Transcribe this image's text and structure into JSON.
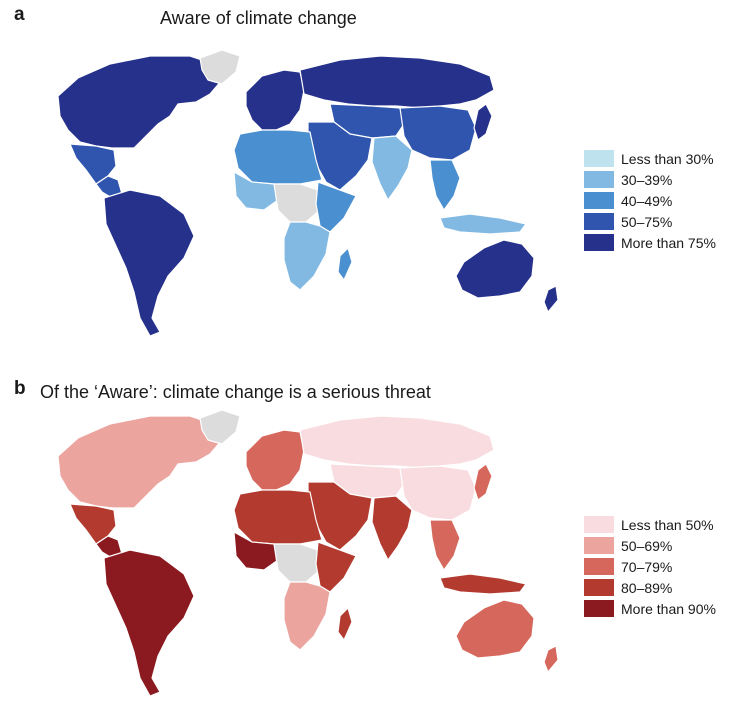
{
  "panels": [
    {
      "letter": "a",
      "title": "Aware of climate change",
      "legend": [
        {
          "label": "Less than 30%",
          "color": "#bfe3ee"
        },
        {
          "label": "30–39%",
          "color": "#82b9e3"
        },
        {
          "label": "40–49%",
          "color": "#4a8fd0"
        },
        {
          "label": "50–75%",
          "color": "#2f55ae"
        },
        {
          "label": "More than 75%",
          "color": "#25318b"
        }
      ],
      "no_data_color": "#dcdcdc",
      "regions": {
        "north-america": "#25318b",
        "greenland": "#dcdcdc",
        "mexico": "#2f55ae",
        "central-america": "#2f55ae",
        "south-america": "#25318b",
        "western-europe": "#25318b",
        "russia": "#25318b",
        "central-asia": "#2f55ae",
        "china": "#2f55ae",
        "india": "#82b9e3",
        "middle-east": "#2f55ae",
        "north-africa": "#4a8fd0",
        "west-africa": "#82b9e3",
        "central-africa": "#dcdcdc",
        "east-africa": "#4a8fd0",
        "southern-africa": "#82b9e3",
        "madagascar": "#4a8fd0",
        "southeast-asia": "#4a8fd0",
        "indonesia": "#82b9e3",
        "japan": "#25318b",
        "australia": "#25318b",
        "new-zealand": "#25318b"
      }
    },
    {
      "letter": "b",
      "title": "Of the ‘Aware’: climate change is a serious threat",
      "legend": [
        {
          "label": "Less than 50%",
          "color": "#f9dcdf"
        },
        {
          "label": "50–69%",
          "color": "#eca49f"
        },
        {
          "label": "70–79%",
          "color": "#d6675c"
        },
        {
          "label": "80–89%",
          "color": "#b23a2f"
        },
        {
          "label": "More than 90%",
          "color": "#8b1a20"
        }
      ],
      "no_data_color": "#dcdcdc",
      "regions": {
        "north-america": "#eca49f",
        "greenland": "#dcdcdc",
        "mexico": "#b23a2f",
        "central-america": "#8b1a20",
        "south-america": "#8b1a20",
        "western-europe": "#d6675c",
        "russia": "#f9dcdf",
        "central-asia": "#f9dcdf",
        "china": "#f9dcdf",
        "india": "#b23a2f",
        "middle-east": "#b23a2f",
        "north-africa": "#b23a2f",
        "west-africa": "#8b1a20",
        "central-africa": "#dcdcdc",
        "east-africa": "#b23a2f",
        "southern-africa": "#eca49f",
        "madagascar": "#b23a2f",
        "southeast-asia": "#d6675c",
        "indonesia": "#b23a2f",
        "japan": "#d6675c",
        "australia": "#d6675c",
        "new-zealand": "#d6675c"
      }
    }
  ]
}
